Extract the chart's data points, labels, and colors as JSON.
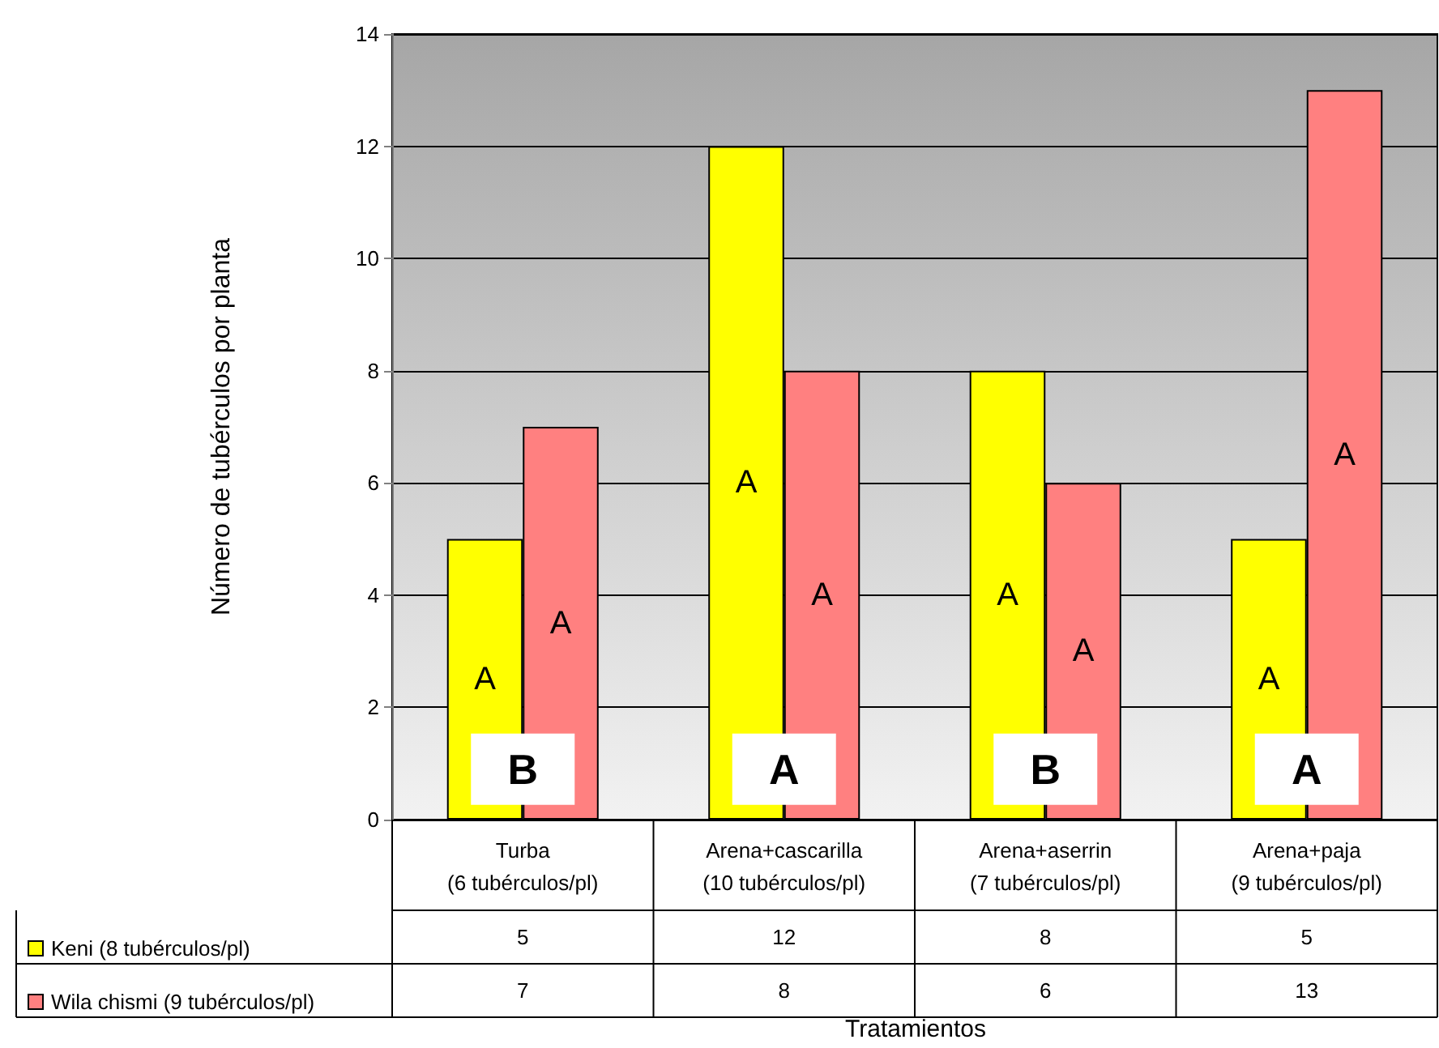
{
  "chart_data": {
    "type": "bar",
    "ylabel": "Número de tubérculos por planta",
    "categories": [
      "Turba\n(6 tubérculos/pl)",
      "Arena+cascarilla\n(10 tubérculos/pl)",
      "Arena+aserrin\n(7 tubérculos/pl)",
      "Arena+paja\n(9 tubérculos/pl)"
    ],
    "series": [
      {
        "name": "Keni (8 tubérculos/pl)",
        "color": "#ffff00",
        "values": [
          5,
          12,
          8,
          5
        ],
        "value_labels": [
          "5",
          "12",
          "8",
          "5"
        ]
      },
      {
        "name": "Wila chismi (9 tubérculos/pl)",
        "color": "#ff8080",
        "values": [
          7,
          8,
          6,
          13
        ],
        "value_labels": [
          "7",
          "8",
          "6",
          "13"
        ]
      }
    ],
    "ylim": [
      0,
      14
    ],
    "yticks": [
      0,
      2,
      4,
      6,
      8,
      10,
      12,
      14
    ],
    "grid": "y",
    "legend": "bottom",
    "annotations": [
      {
        "text": "A",
        "x": "Turba\n(6 tubérculos/pl)",
        "y": 2.5
      },
      {
        "text": "A",
        "x": "Turba\n(6 tubérculos/pl)",
        "y": 3.5
      },
      {
        "text": "A",
        "x": "Arena+cascarilla\n(10 tubérculos/pl)",
        "y": 6
      },
      {
        "text": "A",
        "x": "Arena+cascarilla\n(10 tubérculos/pl)",
        "y": 4
      },
      {
        "text": "A",
        "x": "Arena+aserrin\n(7 tubérculos/pl)",
        "y": 4
      },
      {
        "text": "A",
        "x": "Arena+aserrin\n(7 tubérculos/pl)",
        "y": 3
      },
      {
        "text": "A",
        "x": "Arena+paja\n(9 tubérculos/pl)",
        "y": 2.5
      },
      {
        "text": "A",
        "x": "Arena+paja\n(9 tubérculos/pl)",
        "y": 6.5
      },
      {
        "text": "B",
        "x": "Turba\n(6 tubérculos/pl)",
        "y": 0.9
      },
      {
        "text": "A",
        "x": "Arena+cascarilla\n(10 tubérculos/pl)",
        "y": 0.9
      },
      {
        "text": "B",
        "x": "Arena+aserrin\n(7 tubérculos/pl)",
        "y": 0.9
      },
      {
        "text": "A",
        "x": "Arena+paja\n(9 tubérculos/pl)",
        "y": 0.9
      },
      "Tratamientos"
    ]
  }
}
